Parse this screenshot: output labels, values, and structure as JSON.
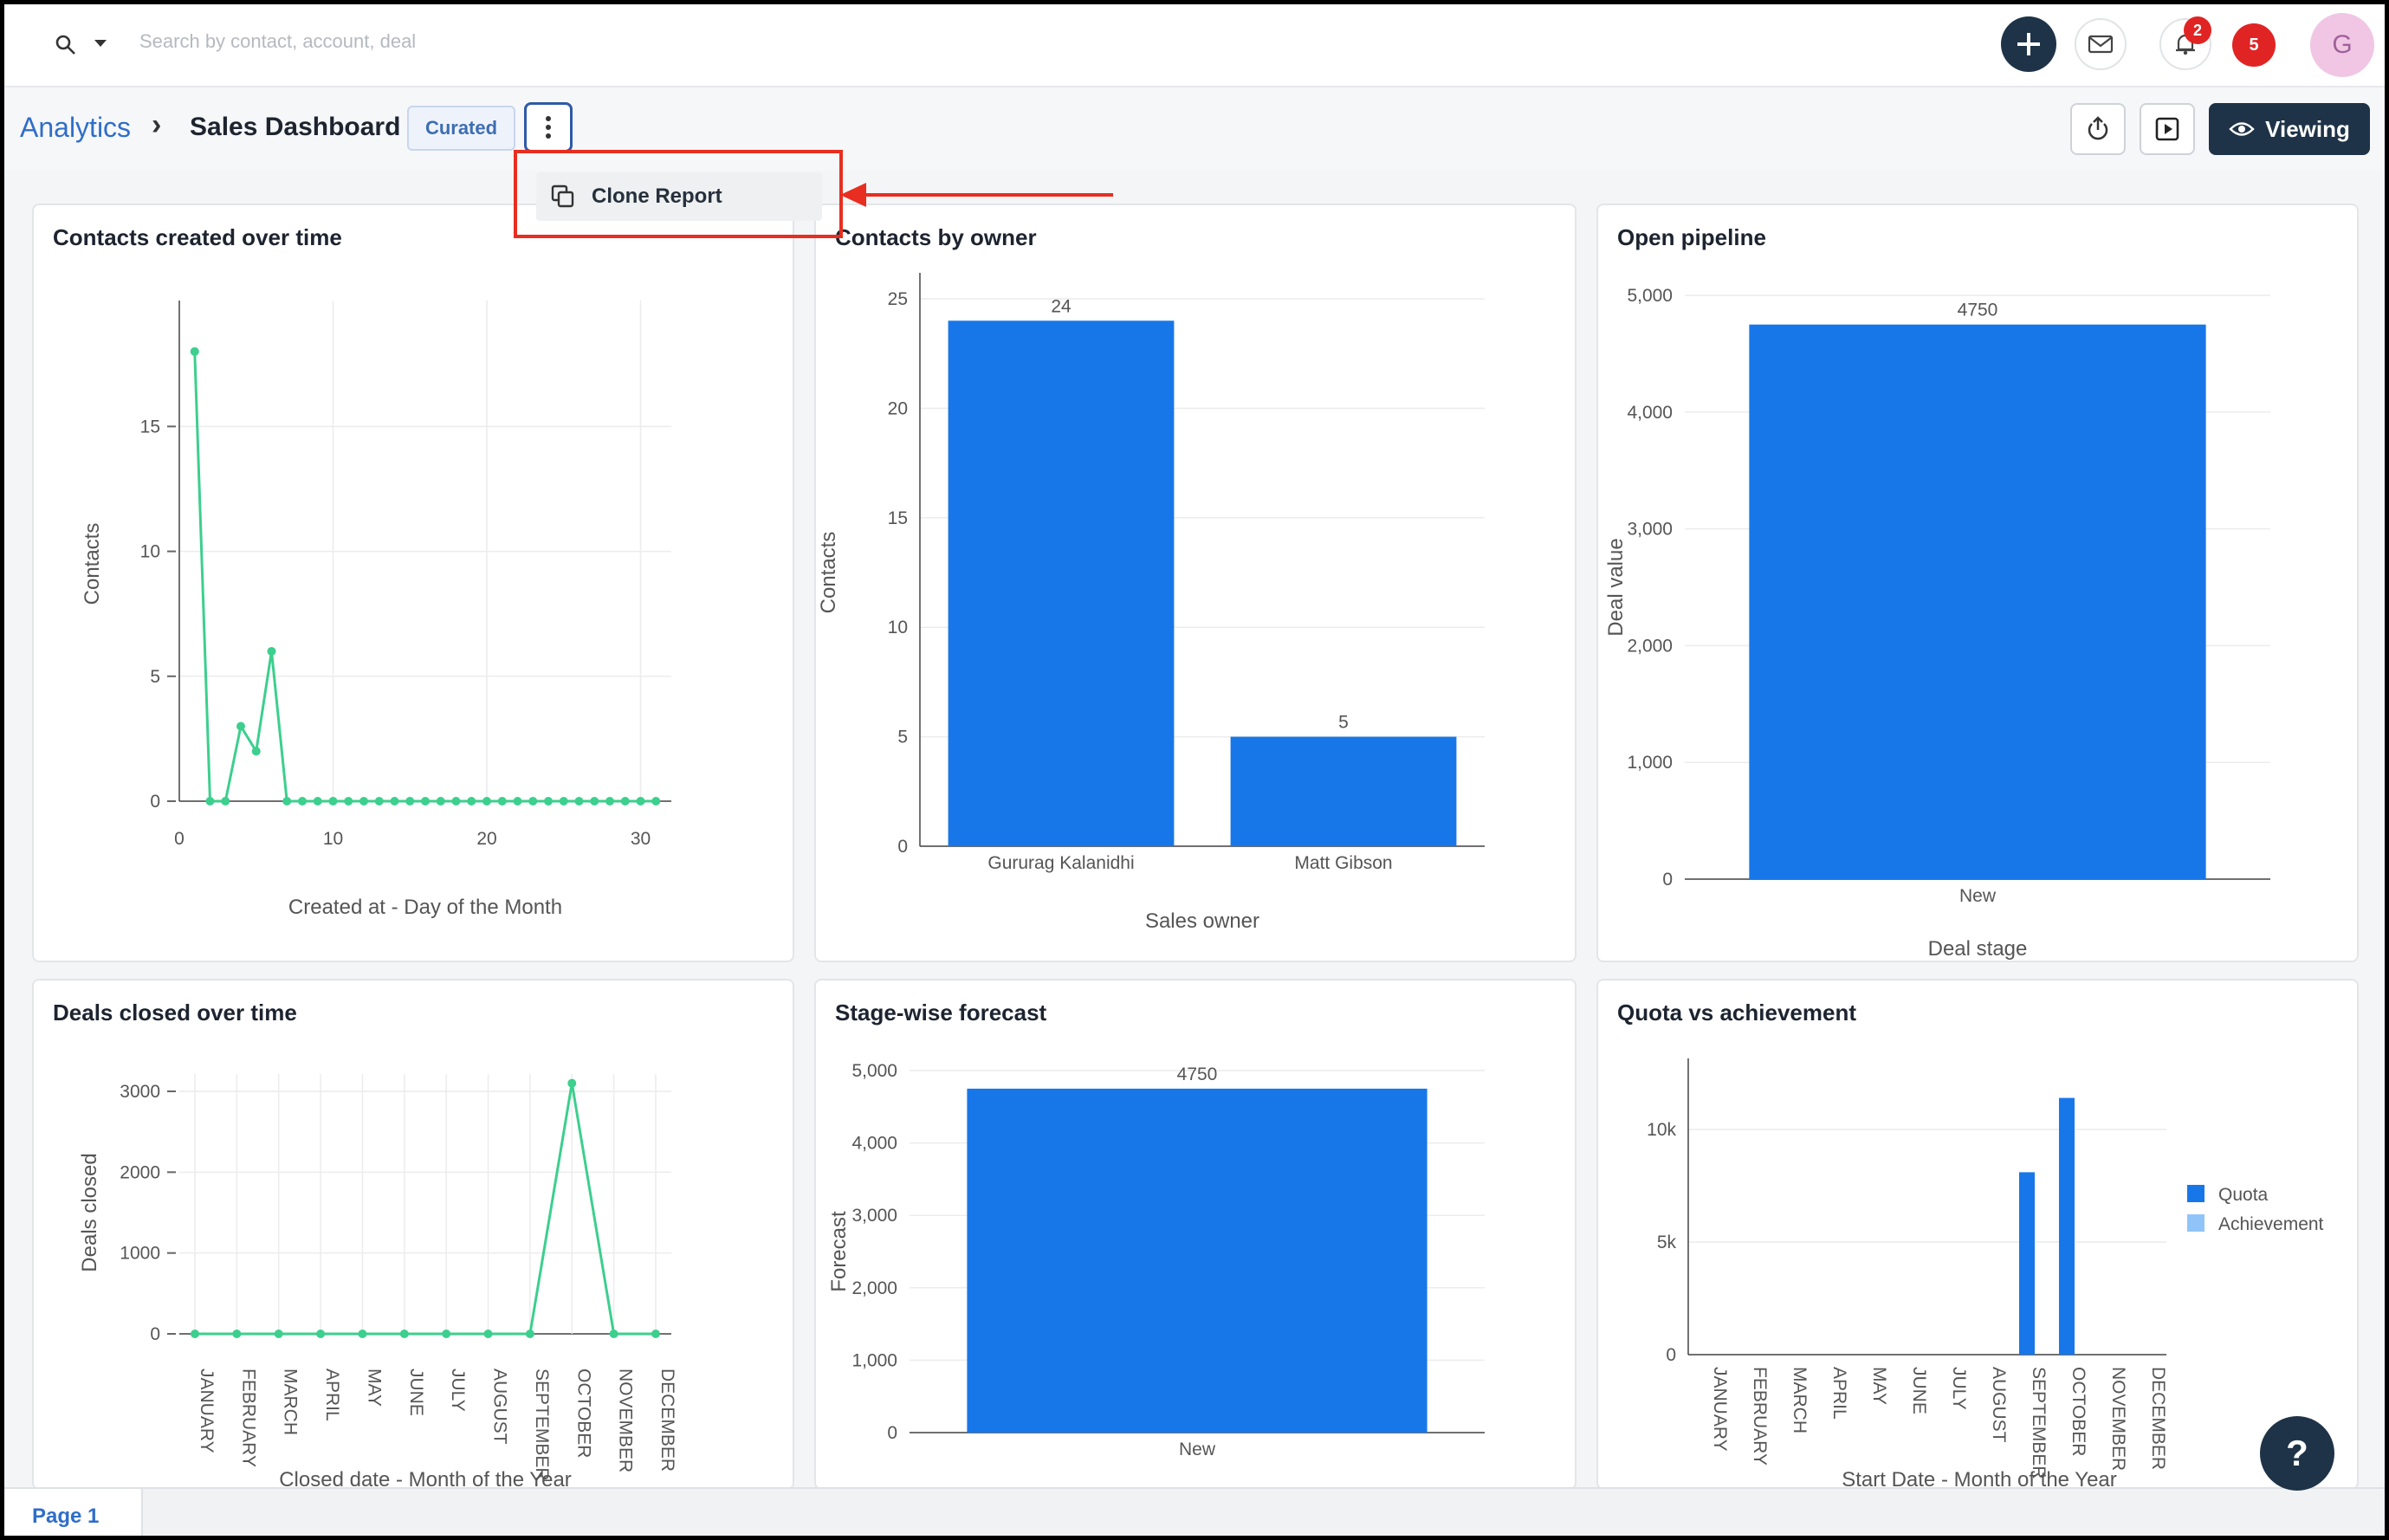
{
  "topbar": {
    "search_placeholder": "Search by contact, account, deal",
    "notif_badge": "2",
    "alert_badge": "5",
    "avatar_initial": "G"
  },
  "breadcrumb": {
    "root": "Analytics",
    "sep": "›",
    "title": "Sales Dashboard",
    "tag": "Curated"
  },
  "actions": {
    "viewing": "Viewing"
  },
  "menu": {
    "clone": "Clone Report"
  },
  "footer": {
    "page": "Page 1"
  },
  "help": "?",
  "colors": {
    "bar": "#1877e8",
    "light": "#90c4f9",
    "line": "#3ccf8e",
    "navy": "#1e3347",
    "link": "#2f6ec9"
  },
  "panels": {
    "contacts_time": {
      "title": "Contacts created over time"
    },
    "contacts_owner": {
      "title": "Contacts by owner"
    },
    "open_pipeline": {
      "title": "Open pipeline"
    },
    "deals_time": {
      "title": "Deals closed over time"
    },
    "stage_forecast": {
      "title": "Stage-wise forecast"
    },
    "quota": {
      "title": "Quota vs achievement"
    }
  },
  "chart_data": [
    {
      "id": "contacts_time",
      "type": "line",
      "xlabel": "Created at - Day of the Month",
      "ylabel": "Contacts",
      "xlim": [
        0,
        32
      ],
      "ylim": [
        0,
        19
      ],
      "xticks": [
        0,
        10,
        20,
        30
      ],
      "yticks": [
        0,
        5,
        10,
        15
      ],
      "x": [
        1,
        2,
        3,
        4,
        5,
        6,
        7,
        8,
        9,
        10,
        11,
        12,
        13,
        14,
        15,
        16,
        17,
        18,
        19,
        20,
        21,
        22,
        23,
        24,
        25,
        26,
        27,
        28,
        29,
        30,
        31
      ],
      "values": [
        18,
        0,
        0,
        3,
        2,
        6,
        0,
        0,
        0,
        0,
        0,
        0,
        0,
        0,
        0,
        0,
        0,
        0,
        0,
        0,
        0,
        0,
        0,
        0,
        0,
        0,
        0,
        0,
        0,
        0,
        0
      ]
    },
    {
      "id": "contacts_owner",
      "type": "bar",
      "xlabel": "Sales owner",
      "ylabel": "Contacts",
      "ylim": [
        0,
        25
      ],
      "yticks": [
        0,
        5,
        10,
        15,
        20,
        25
      ],
      "categories": [
        "Gururag Kalanidhi",
        "Matt Gibson"
      ],
      "values": [
        24,
        5
      ]
    },
    {
      "id": "open_pipeline",
      "type": "bar",
      "xlabel": "Deal stage",
      "ylabel": "Deal value",
      "ylim": [
        0,
        5000
      ],
      "yticks": [
        "0",
        "1,000",
        "2,000",
        "3,000",
        "4,000",
        "5,000"
      ],
      "categories": [
        "New"
      ],
      "values": [
        4750
      ]
    },
    {
      "id": "deals_time",
      "type": "line",
      "xlabel": "Closed date - Month of the Year",
      "ylabel": "Deals closed",
      "ylim": [
        0,
        3000
      ],
      "yticks": [
        0,
        1000,
        2000,
        3000
      ],
      "categories": [
        "JANUARY",
        "FEBRUARY",
        "MARCH",
        "APRIL",
        "MAY",
        "JUNE",
        "JULY",
        "AUGUST",
        "SEPTEMBER",
        "OCTOBER",
        "NOVEMBER",
        "DECEMBER"
      ],
      "values": [
        0,
        0,
        0,
        0,
        0,
        0,
        0,
        0,
        0,
        3100,
        0,
        0
      ]
    },
    {
      "id": "stage_forecast",
      "type": "bar",
      "xlabel": "",
      "ylabel": "Forecast",
      "ylim": [
        0,
        5000
      ],
      "yticks": [
        "0",
        "1,000",
        "2,000",
        "3,000",
        "4,000",
        "5,000"
      ],
      "categories": [
        "New"
      ],
      "values": [
        4750
      ]
    },
    {
      "id": "quota",
      "type": "bar",
      "xlabel": "Start Date - Month of the Year",
      "ylabel": "",
      "ylim": [
        0,
        12000
      ],
      "yticks": [
        "0",
        "5k",
        "10k"
      ],
      "legend": "right",
      "categories": [
        "JANUARY",
        "FEBRUARY",
        "MARCH",
        "APRIL",
        "MAY",
        "JUNE",
        "JULY",
        "AUGUST",
        "SEPTEMBER",
        "OCTOBER",
        "NOVEMBER",
        "DECEMBER"
      ],
      "series": [
        {
          "name": "Quota",
          "values": [
            0,
            0,
            0,
            0,
            0,
            0,
            0,
            0,
            8100,
            11400,
            0,
            0
          ]
        },
        {
          "name": "Achievement",
          "values": [
            0,
            0,
            0,
            0,
            0,
            0,
            0,
            0,
            0,
            0,
            0,
            0
          ]
        }
      ]
    }
  ]
}
